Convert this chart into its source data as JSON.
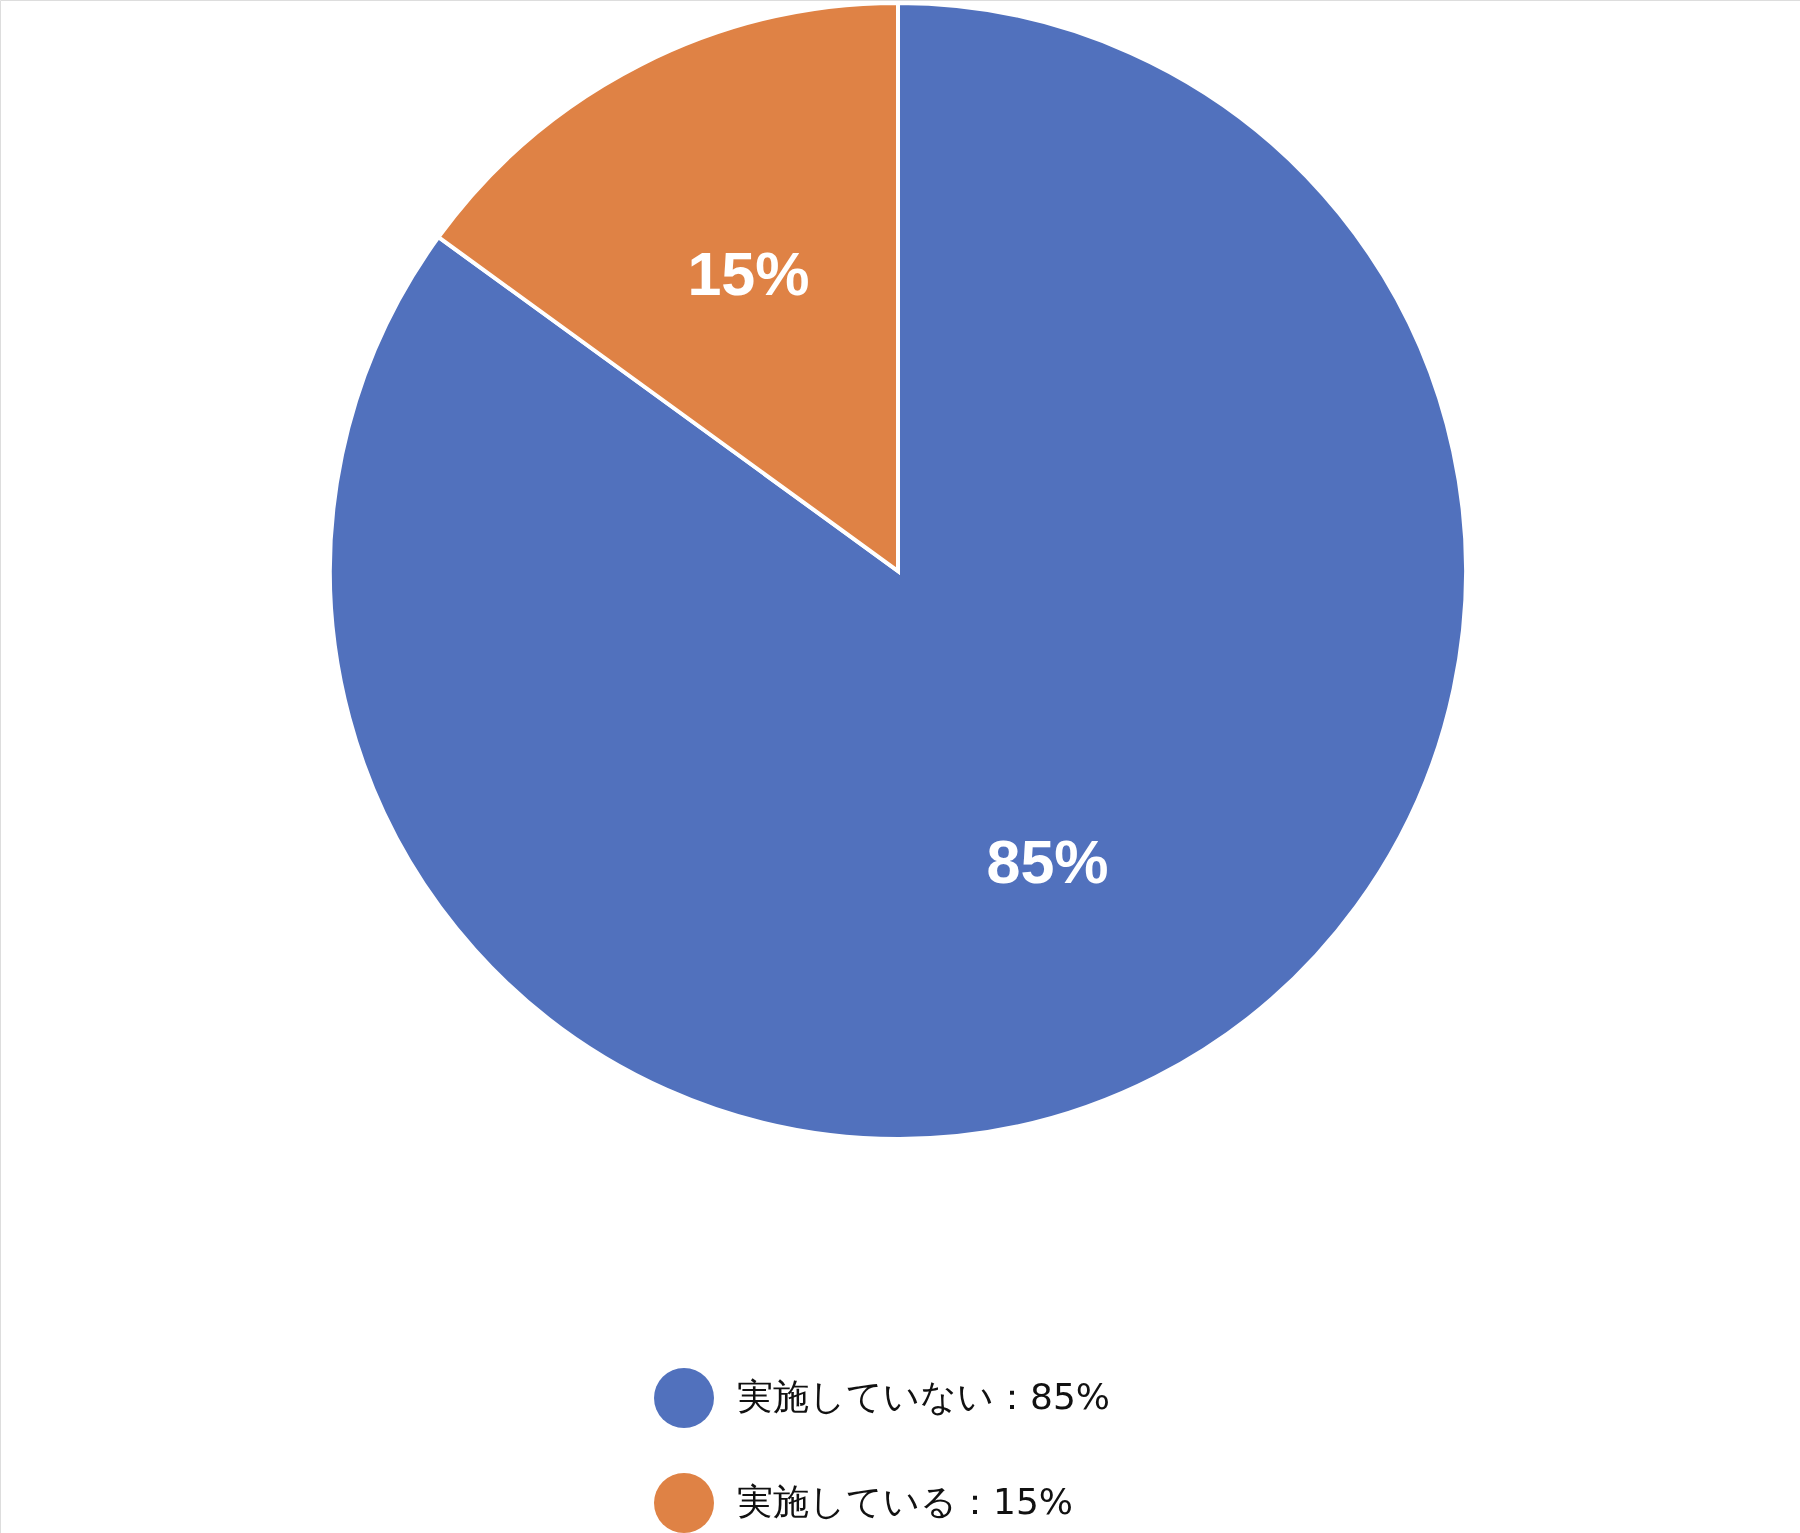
{
  "chart_data": {
    "type": "pie",
    "categories": [
      "実施していない：85%",
      "実施している：15%"
    ],
    "values": [
      85,
      15
    ],
    "colors": [
      "#5171bd",
      "#df8245"
    ],
    "value_labels": [
      "85%",
      "15%"
    ],
    "legend": "bottom"
  }
}
